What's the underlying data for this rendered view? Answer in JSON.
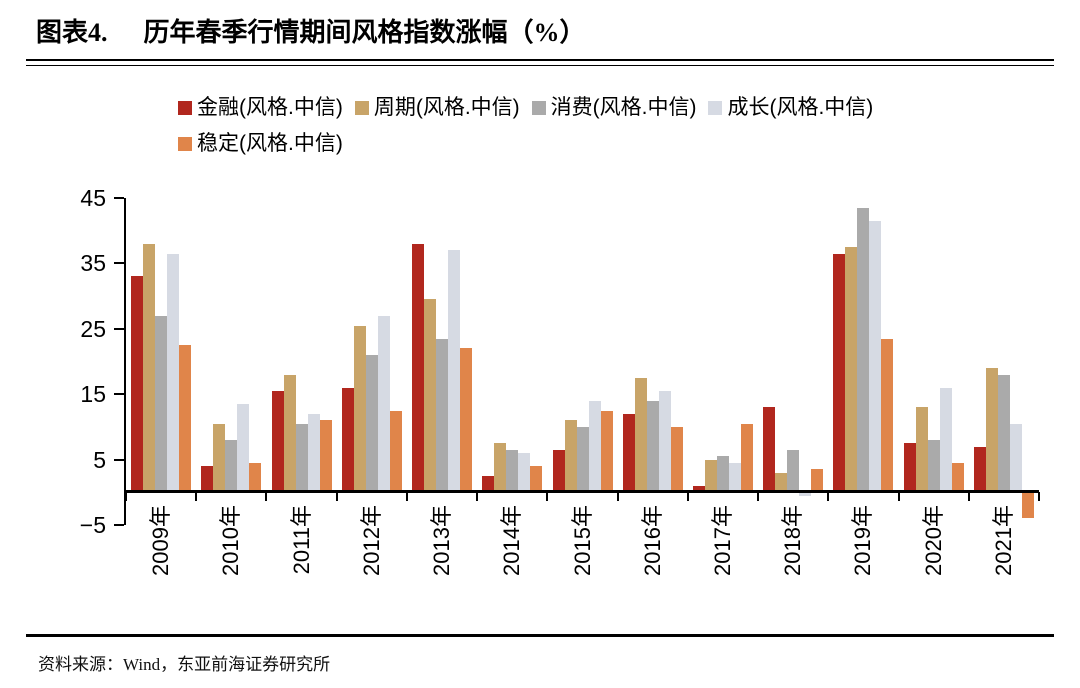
{
  "title": {
    "prefix": "图表4.",
    "text": "历年春季行情期间风格指数涨幅（%）"
  },
  "footer": {
    "text": "资料来源：Wind，东亚前海证券研究所"
  },
  "chart_data": {
    "type": "bar",
    "title": "历年春季行情期间风格指数涨幅（%）",
    "xlabel": "",
    "ylabel": "",
    "ylim": [
      -5,
      45
    ],
    "yticks": [
      45,
      35,
      25,
      15,
      5,
      -5
    ],
    "grid": false,
    "legend_position": "top",
    "categories": [
      "2009年",
      "2010年",
      "2011年",
      "2012年",
      "2013年",
      "2014年",
      "2015年",
      "2016年",
      "2017年",
      "2018年",
      "2019年",
      "2020年",
      "2021年"
    ],
    "series": [
      {
        "id": "finance",
        "name": "金融(风格.中信)",
        "color": "#B1271E",
        "values": [
          33,
          4,
          15.5,
          16,
          38,
          2.5,
          6.5,
          12,
          1,
          13,
          36.5,
          7.5,
          7
        ]
      },
      {
        "id": "cycle",
        "name": "周期(风格.中信)",
        "color": "#C8A468",
        "values": [
          38,
          10.5,
          18,
          25.5,
          29.5,
          7.5,
          11,
          17.5,
          5,
          3,
          37.5,
          13,
          19
        ]
      },
      {
        "id": "consumer",
        "name": "消费(风格.中信)",
        "color": "#AAAAAA",
        "values": [
          27,
          8,
          10.5,
          21,
          23.5,
          6.5,
          10,
          14,
          5.5,
          6.5,
          43.5,
          8,
          18
        ]
      },
      {
        "id": "growth",
        "name": "成长(风格.中信)",
        "color": "#D6DAE3",
        "values": [
          36.5,
          13.5,
          12,
          27,
          37,
          6,
          14,
          15.5,
          4.5,
          -0.5,
          41.5,
          16,
          10.5
        ]
      },
      {
        "id": "stable",
        "name": "稳定(风格.中信)",
        "color": "#E0854A",
        "values": [
          22.5,
          4.5,
          11,
          12.5,
          22,
          4,
          12.5,
          10,
          10.5,
          3.5,
          23.5,
          4.5,
          -4
        ]
      }
    ]
  }
}
